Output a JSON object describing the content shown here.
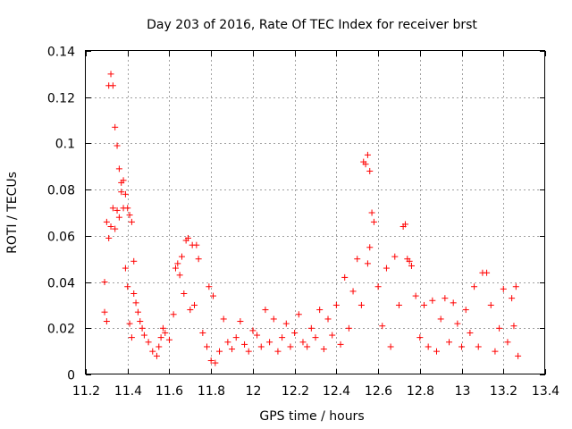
{
  "chart_data": {
    "type": "scatter",
    "title": "Day 203 of 2016, Rate Of TEC Index for receiver brst",
    "xlabel": "GPS time / hours",
    "ylabel": "ROTI / TECUs",
    "xlim": [
      11.2,
      13.4
    ],
    "ylim": [
      0,
      0.14
    ],
    "xticks": [
      "11.2",
      "11.4",
      "11.6",
      "11.8",
      "12",
      "12.2",
      "12.4",
      "12.6",
      "12.8",
      "13",
      "13.2",
      "13.4"
    ],
    "yticks": [
      "0",
      "0.02",
      "0.04",
      "0.06",
      "0.08",
      "0.1",
      "0.12",
      "0.14"
    ],
    "grid": true,
    "marker": "plus",
    "color": "#ff0000",
    "series": [
      {
        "name": "ROTI",
        "x": [
          11.29,
          11.29,
          11.3,
          11.3,
          11.31,
          11.31,
          11.32,
          11.32,
          11.33,
          11.33,
          11.34,
          11.34,
          11.35,
          11.35,
          11.36,
          11.36,
          11.37,
          11.37,
          11.38,
          11.38,
          11.39,
          11.39,
          11.4,
          11.4,
          11.41,
          11.41,
          11.42,
          11.42,
          11.43,
          11.43,
          11.44,
          11.45,
          11.46,
          11.47,
          11.48,
          11.5,
          11.52,
          11.54,
          11.55,
          11.56,
          11.57,
          11.58,
          11.6,
          11.62,
          11.63,
          11.64,
          11.65,
          11.66,
          11.67,
          11.68,
          11.69,
          11.7,
          11.71,
          11.72,
          11.73,
          11.74,
          11.76,
          11.78,
          11.79,
          11.8,
          11.81,
          11.82,
          11.84,
          11.86,
          11.88,
          11.9,
          11.92,
          11.94,
          11.96,
          11.98,
          12.0,
          12.02,
          12.04,
          12.06,
          12.08,
          12.1,
          12.12,
          12.14,
          12.16,
          12.18,
          12.2,
          12.22,
          12.24,
          12.26,
          12.28,
          12.3,
          12.32,
          12.34,
          12.36,
          12.38,
          12.4,
          12.42,
          12.44,
          12.46,
          12.48,
          12.5,
          12.52,
          12.53,
          12.54,
          12.55,
          12.55,
          12.56,
          12.56,
          12.57,
          12.58,
          12.6,
          12.62,
          12.64,
          12.66,
          12.68,
          12.7,
          12.72,
          12.73,
          12.74,
          12.75,
          12.76,
          12.78,
          12.8,
          12.82,
          12.84,
          12.86,
          12.88,
          12.9,
          12.92,
          12.94,
          12.96,
          12.98,
          13.0,
          13.02,
          13.04,
          13.06,
          13.08,
          13.1,
          13.12,
          13.14,
          13.16,
          13.18,
          13.2,
          13.22,
          13.24,
          13.25,
          13.26,
          13.27
        ],
        "y": [
          0.027,
          0.04,
          0.023,
          0.066,
          0.125,
          0.059,
          0.13,
          0.064,
          0.125,
          0.072,
          0.107,
          0.063,
          0.099,
          0.071,
          0.089,
          0.068,
          0.083,
          0.079,
          0.084,
          0.072,
          0.078,
          0.046,
          0.072,
          0.038,
          0.069,
          0.022,
          0.066,
          0.016,
          0.049,
          0.035,
          0.031,
          0.027,
          0.023,
          0.02,
          0.017,
          0.014,
          0.01,
          0.008,
          0.012,
          0.016,
          0.02,
          0.018,
          0.015,
          0.026,
          0.046,
          0.048,
          0.043,
          0.051,
          0.035,
          0.058,
          0.059,
          0.028,
          0.056,
          0.03,
          0.056,
          0.05,
          0.018,
          0.012,
          0.038,
          0.006,
          0.034,
          0.005,
          0.01,
          0.024,
          0.014,
          0.011,
          0.016,
          0.023,
          0.013,
          0.01,
          0.019,
          0.017,
          0.012,
          0.028,
          0.014,
          0.024,
          0.01,
          0.016,
          0.022,
          0.012,
          0.018,
          0.026,
          0.014,
          0.012,
          0.02,
          0.016,
          0.028,
          0.011,
          0.024,
          0.017,
          0.03,
          0.013,
          0.042,
          0.02,
          0.036,
          0.05,
          0.03,
          0.092,
          0.091,
          0.095,
          0.048,
          0.088,
          0.055,
          0.07,
          0.066,
          0.038,
          0.021,
          0.046,
          0.012,
          0.051,
          0.03,
          0.064,
          0.065,
          0.05,
          0.049,
          0.047,
          0.034,
          0.016,
          0.03,
          0.012,
          0.032,
          0.01,
          0.024,
          0.033,
          0.014,
          0.031,
          0.022,
          0.012,
          0.028,
          0.018,
          0.038,
          0.012,
          0.044,
          0.044,
          0.03,
          0.01,
          0.02,
          0.037,
          0.014,
          0.033,
          0.021,
          0.038,
          0.008
        ]
      }
    ]
  }
}
